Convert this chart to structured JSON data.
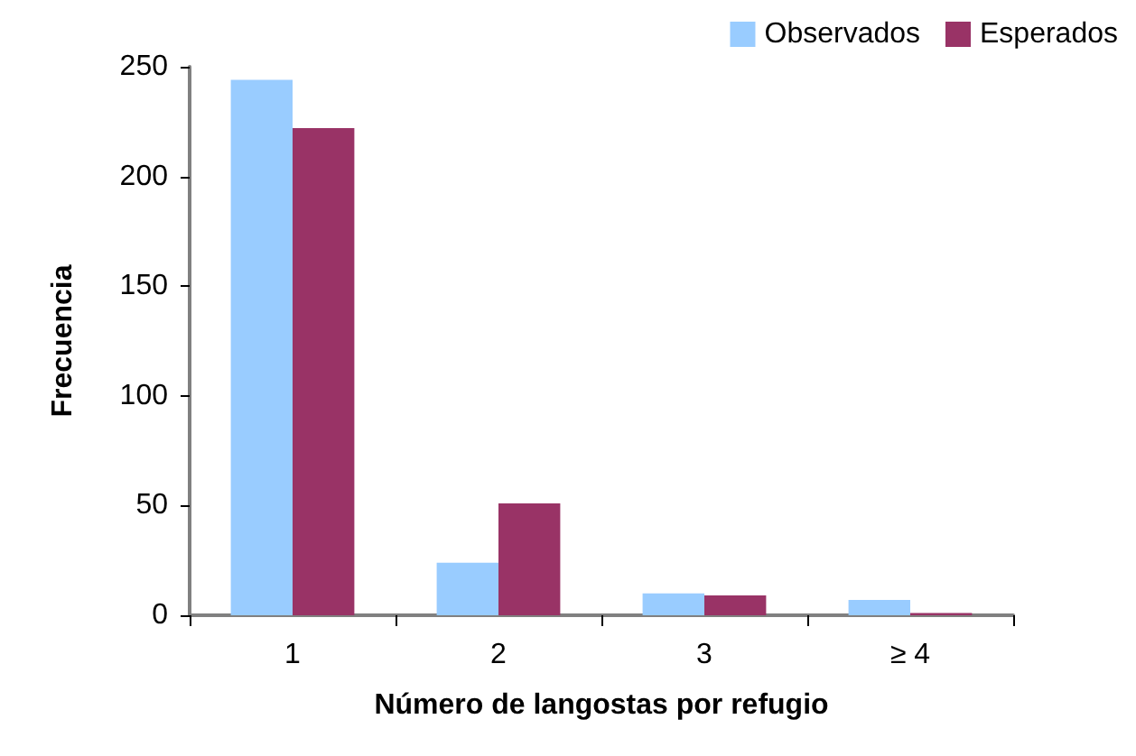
{
  "chart_data": {
    "type": "bar",
    "xlabel": "Número de langostas por refugio",
    "ylabel": "Frecuencia",
    "categories": [
      "1",
      "2",
      "3",
      "≥ 4"
    ],
    "series": [
      {
        "name": "Observados",
        "color": "#99ccff",
        "values": [
          244,
          24,
          10,
          7
        ]
      },
      {
        "name": "Esperados",
        "color": "#993366",
        "values": [
          222,
          51,
          9,
          1
        ]
      }
    ],
    "ylim": [
      0,
      250
    ],
    "yticks": [
      0,
      50,
      100,
      150,
      200,
      250
    ],
    "grid": false,
    "legend": "top right"
  }
}
